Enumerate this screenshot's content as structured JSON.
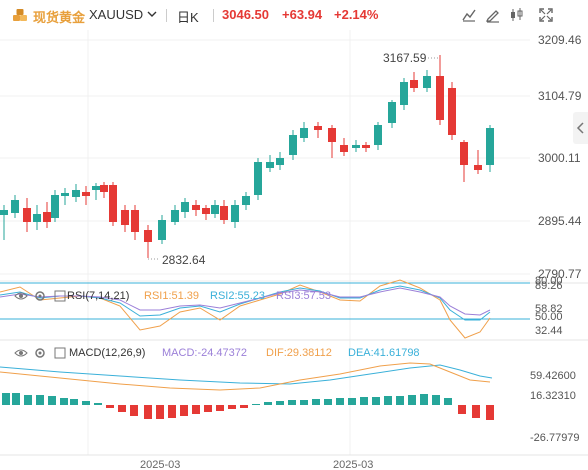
{
  "header": {
    "title": "现货黄金",
    "symbol": "XAUUSD",
    "timeframe": "日K",
    "price": "3046.50",
    "change": "+63.94",
    "change_pct": "+2.14%"
  },
  "toolbar": {
    "icons": [
      "indicator-compare-icon",
      "draw-icon",
      "candle-type-icon",
      "fullscreen-icon"
    ]
  },
  "main_chart": {
    "y_axis_labels": [
      "3209.46",
      "3104.79",
      "3000.11",
      "2895.44",
      "2790.77"
    ],
    "high_annotation": "3167.59",
    "low_annotation": "2832.64"
  },
  "rsi": {
    "label": "RSI(7,14,21)",
    "rsi1": "RSI1:51.39",
    "rsi2": "RSI2:55.23",
    "rsi3": "RSI3:57.53",
    "levels": [
      "80.00",
      "89.26",
      "58.82",
      "50.00",
      "32.44"
    ],
    "colors": {
      "rsi1": "#f0a04b",
      "rsi2": "#3ab0d9",
      "rsi3": "#9b7fd8"
    }
  },
  "macd": {
    "label": "MACD(12,26,9)",
    "macd_value": "MACD:-24.47372",
    "dif_value": "DIF:29.38112",
    "dea_value": "DEA:41.61798",
    "levels": [
      "59.42600",
      "16.32310",
      "-26.77979"
    ],
    "colors": {
      "macd": "#9b7fd8",
      "dif": "#f0a04b",
      "dea": "#3ab0d9"
    }
  },
  "x_axis_labels": [
    "2025-03",
    "2025-03"
  ],
  "colors": {
    "up": "#e53935",
    "down": "#26a69a",
    "accent": "#e8a03c"
  }
}
